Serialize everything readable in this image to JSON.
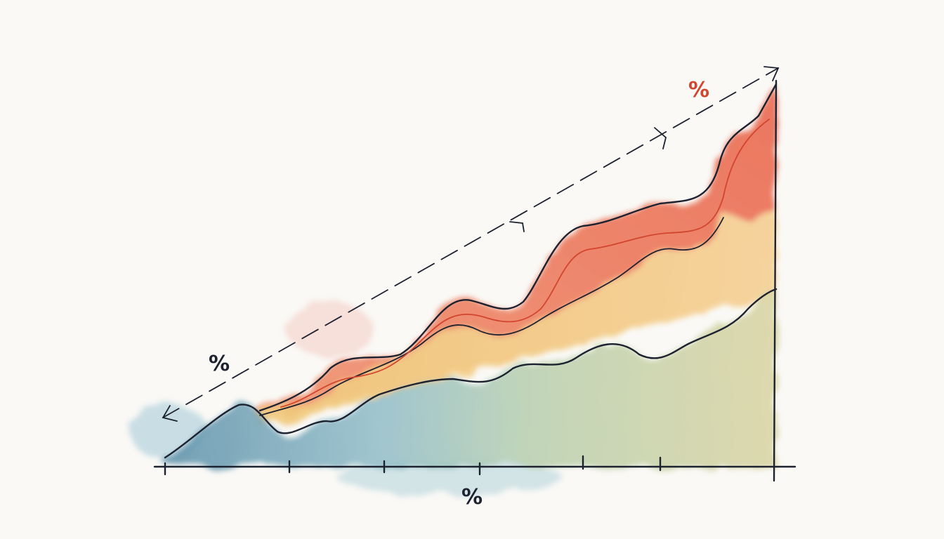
{
  "labels": {
    "diagonal": "%",
    "top": "%",
    "axis": "%"
  }
}
